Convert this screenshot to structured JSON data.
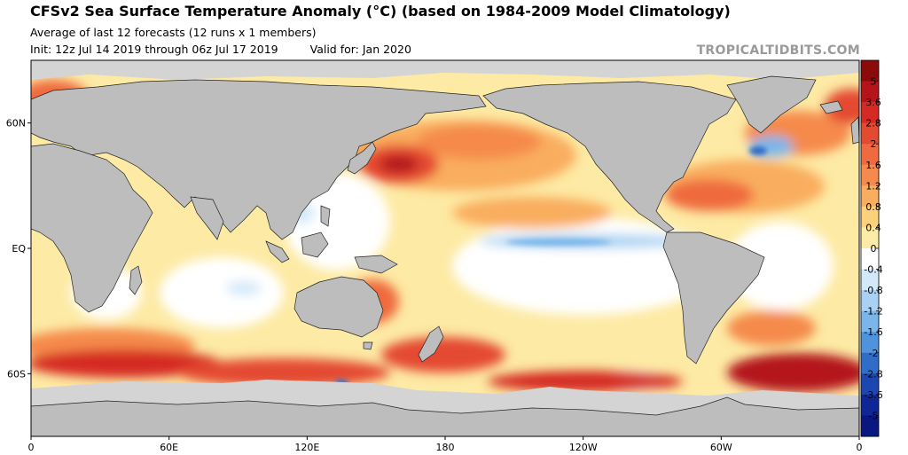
{
  "header": {
    "title": "CFSv2 Sea Surface Temperature Anomaly (°C) (based on 1984-2009 Model Climatology)",
    "subtitle": "Average of last 12 forecasts (12 runs x 1 members)",
    "init": "Init: 12z Jul 14 2019 through 06z Jul 17 2019",
    "valid": "Valid for: Jan 2020",
    "watermark": "TROPICALTIDBITS.COM"
  },
  "map": {
    "projection": "equirectangular",
    "lon_range": [
      0,
      360
    ],
    "lat_range": [
      -90,
      90
    ],
    "lon_ticks": [
      {
        "value": 0,
        "label": "0"
      },
      {
        "value": 60,
        "label": "60E"
      },
      {
        "value": 120,
        "label": "120E"
      },
      {
        "value": 180,
        "label": "180"
      },
      {
        "value": 240,
        "label": "120W"
      },
      {
        "value": 300,
        "label": "60W"
      },
      {
        "value": 360,
        "label": "0"
      }
    ],
    "lat_ticks": [
      {
        "value": 60,
        "label": "60N"
      },
      {
        "value": 0,
        "label": "EQ"
      },
      {
        "value": -60,
        "label": "60S"
      }
    ],
    "colors": {
      "land": "#bdbdbd",
      "ice": "#d4d4d4",
      "ocean_neutral": "#ffffff"
    }
  },
  "colorbar": {
    "levels": [
      "5",
      "3.6",
      "2.8",
      "2",
      "1.6",
      "1.2",
      "0.8",
      "0.4",
      "0",
      "-0.4",
      "-0.8",
      "-1.2",
      "-1.6",
      "-2",
      "-2.8",
      "-3.6",
      "-5"
    ],
    "colors": [
      "#8b0b0b",
      "#b4141a",
      "#d52a23",
      "#e44a30",
      "#ef6a3e",
      "#f58a4c",
      "#f9ad5f",
      "#fbd17c",
      "#fdeca5",
      "#ffffff",
      "#d3e8f9",
      "#a8d1f3",
      "#7ab6ea",
      "#4e93dc",
      "#2f6dc8",
      "#1c47b0",
      "#0f2796",
      "#0a1780"
    ]
  }
}
